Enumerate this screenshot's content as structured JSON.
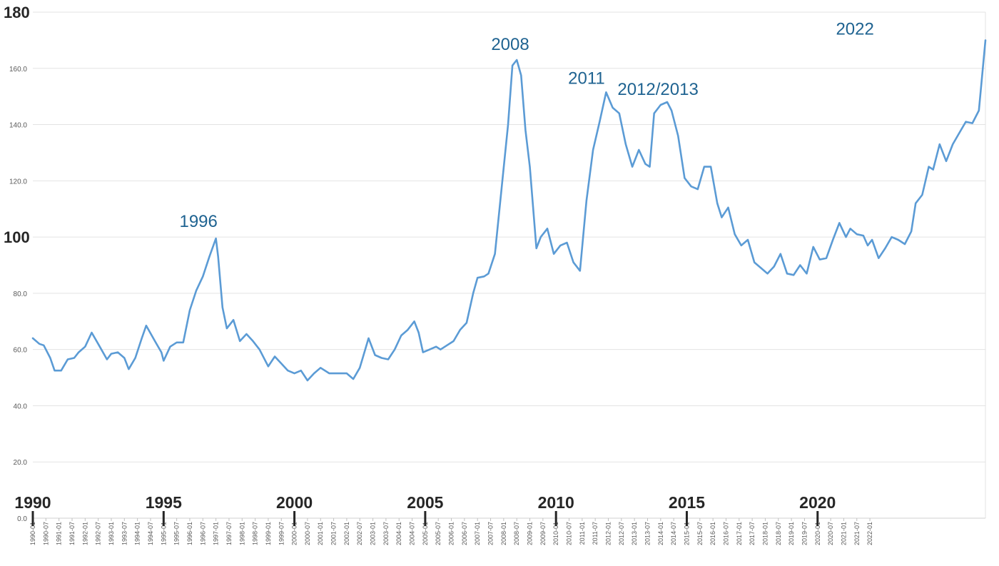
{
  "chart_data": {
    "type": "line",
    "title": "",
    "xlabel": "",
    "ylabel": "",
    "ylim": [
      0,
      180
    ],
    "grid": "horizontal",
    "legend": "none",
    "colors": {
      "series": "#5b9bd5",
      "annotation": "#1f6391",
      "grid": "#e3e3e3"
    },
    "yticks": [
      {
        "v": 0,
        "label": "0.0",
        "emph": false
      },
      {
        "v": 20,
        "label": "20.0",
        "emph": false
      },
      {
        "v": 40,
        "label": "40.0",
        "emph": false
      },
      {
        "v": 60,
        "label": "60.0",
        "emph": false
      },
      {
        "v": 80,
        "label": "80.0",
        "emph": false
      },
      {
        "v": 100,
        "label": "100",
        "emph": true
      },
      {
        "v": 120,
        "label": "120.0",
        "emph": false
      },
      {
        "v": 140,
        "label": "140.0",
        "emph": false
      },
      {
        "v": 160,
        "label": "160.0",
        "emph": false
      },
      {
        "v": 180,
        "label": "180",
        "emph": true
      }
    ],
    "x_tick_labels": [
      "1990-01",
      "1990-07",
      "1991-01",
      "1991-07",
      "1992-01",
      "1992-07",
      "1993-01",
      "1993-07",
      "1994-01",
      "1994-07",
      "1995-01",
      "1995-07",
      "1996-01",
      "1996-07",
      "1997-01",
      "1997-07",
      "1998-01",
      "1998-07",
      "1999-01",
      "1999-07",
      "2000-01",
      "2000-07",
      "2001-01",
      "2001-07",
      "2002-01",
      "2002-07",
      "2003-01",
      "2003-07",
      "2004-01",
      "2004-07",
      "2005-01",
      "2005-07",
      "2006-01",
      "2006-07",
      "2007-01",
      "2007-07",
      "2008-01",
      "2008-07",
      "2009-01",
      "2009-07",
      "2010-01",
      "2010-07",
      "2011-01",
      "2011-07",
      "2012-01",
      "2012-07",
      "2013-01",
      "2013-07",
      "2014-01",
      "2014-07",
      "2015-01",
      "2015-07",
      "2016-01",
      "2016-07",
      "2017-01",
      "2017-07",
      "2018-01",
      "2018-07",
      "2019-01",
      "2019-07",
      "2020-01",
      "2020-07",
      "2021-01",
      "2021-07",
      "2022-01"
    ],
    "x_year_labels": [
      {
        "x": "1990-01",
        "label": "1990"
      },
      {
        "x": "1995-01",
        "label": "1995"
      },
      {
        "x": "2000-01",
        "label": "2000"
      },
      {
        "x": "2005-01",
        "label": "2005"
      },
      {
        "x": "2010-01",
        "label": "2010"
      },
      {
        "x": "2015-01",
        "label": "2015"
      },
      {
        "x": "2020-01",
        "label": "2020"
      }
    ],
    "annotations": [
      {
        "x": "1996-05",
        "y": 100,
        "label": "1996"
      },
      {
        "x": "2008-04",
        "y": 163,
        "label": "2008"
      },
      {
        "x": "2011-03",
        "y": 151.5,
        "label": "2011"
      },
      {
        "x": "2012-12",
        "y": 148,
        "label": "2012/2013"
      },
      {
        "x": "2022-02",
        "y": 170,
        "label": "2022"
      }
    ],
    "series": [
      {
        "points": [
          [
            "1990-01",
            64
          ],
          [
            "1990-04",
            62
          ],
          [
            "1990-06",
            61.5
          ],
          [
            "1990-09",
            57
          ],
          [
            "1990-11",
            52.5
          ],
          [
            "1991-02",
            52.5
          ],
          [
            "1991-05",
            56.5
          ],
          [
            "1991-08",
            57
          ],
          [
            "1991-10",
            59
          ],
          [
            "1992-01",
            61
          ],
          [
            "1992-04",
            66
          ],
          [
            "1992-07",
            62
          ],
          [
            "1992-11",
            56.5
          ],
          [
            "1993-01",
            58.5
          ],
          [
            "1993-04",
            59
          ],
          [
            "1993-07",
            57
          ],
          [
            "1993-09",
            53
          ],
          [
            "1993-12",
            57
          ],
          [
            "1994-03",
            64
          ],
          [
            "1994-05",
            68.5
          ],
          [
            "1994-09",
            63
          ],
          [
            "1994-12",
            59
          ],
          [
            "1995-01",
            56
          ],
          [
            "1995-04",
            61
          ],
          [
            "1995-07",
            62.5
          ],
          [
            "1995-10",
            62.5
          ],
          [
            "1996-01",
            74
          ],
          [
            "1996-04",
            81
          ],
          [
            "1996-07",
            86
          ],
          [
            "1996-10",
            93
          ],
          [
            "1997-01",
            99.5
          ],
          [
            "1997-02",
            93
          ],
          [
            "1997-04",
            75
          ],
          [
            "1997-06",
            67.5
          ],
          [
            "1997-09",
            70.5
          ],
          [
            "1997-12",
            63
          ],
          [
            "1998-03",
            65.5
          ],
          [
            "1998-06",
            63
          ],
          [
            "1998-09",
            60
          ],
          [
            "1999-01",
            54
          ],
          [
            "1999-04",
            57.5
          ],
          [
            "1999-07",
            55
          ],
          [
            "1999-10",
            52.5
          ],
          [
            "2000-01",
            51.5
          ],
          [
            "2000-04",
            52.5
          ],
          [
            "2000-07",
            49
          ],
          [
            "2000-10",
            51.5
          ],
          [
            "2001-01",
            53.5
          ],
          [
            "2001-05",
            51.5
          ],
          [
            "2001-09",
            51.5
          ],
          [
            "2002-01",
            51.5
          ],
          [
            "2002-04",
            49.5
          ],
          [
            "2002-07",
            53.5
          ],
          [
            "2002-11",
            64
          ],
          [
            "2003-02",
            58
          ],
          [
            "2003-05",
            57
          ],
          [
            "2003-08",
            56.5
          ],
          [
            "2003-11",
            60
          ],
          [
            "2004-02",
            65
          ],
          [
            "2004-05",
            67
          ],
          [
            "2004-08",
            70
          ],
          [
            "2004-10",
            66
          ],
          [
            "2004-12",
            59
          ],
          [
            "2005-03",
            60
          ],
          [
            "2005-06",
            61
          ],
          [
            "2005-08",
            60
          ],
          [
            "2005-11",
            61.5
          ],
          [
            "2006-02",
            63
          ],
          [
            "2006-05",
            67
          ],
          [
            "2006-08",
            69.5
          ],
          [
            "2006-11",
            80
          ],
          [
            "2007-01",
            85.5
          ],
          [
            "2007-04",
            86
          ],
          [
            "2007-06",
            87
          ],
          [
            "2007-09",
            94
          ],
          [
            "2007-12",
            117
          ],
          [
            "2008-03",
            140
          ],
          [
            "2008-05",
            161
          ],
          [
            "2008-07",
            163
          ],
          [
            "2008-09",
            157.5
          ],
          [
            "2008-11",
            138
          ],
          [
            "2009-01",
            125
          ],
          [
            "2009-04",
            96
          ],
          [
            "2009-06",
            100
          ],
          [
            "2009-09",
            103
          ],
          [
            "2009-12",
            94
          ],
          [
            "2010-03",
            97
          ],
          [
            "2010-06",
            98
          ],
          [
            "2010-09",
            91
          ],
          [
            "2010-12",
            88
          ],
          [
            "2011-03",
            113
          ],
          [
            "2011-06",
            131
          ],
          [
            "2011-09",
            141
          ],
          [
            "2011-12",
            151.5
          ],
          [
            "2012-03",
            146
          ],
          [
            "2012-06",
            144
          ],
          [
            "2012-09",
            133
          ],
          [
            "2012-12",
            125
          ],
          [
            "2013-03",
            131
          ],
          [
            "2013-06",
            126
          ],
          [
            "2013-08",
            125
          ],
          [
            "2013-10",
            144
          ],
          [
            "2014-01",
            147
          ],
          [
            "2014-04",
            148
          ],
          [
            "2014-06",
            145
          ],
          [
            "2014-09",
            136
          ],
          [
            "2014-12",
            121
          ],
          [
            "2015-03",
            118
          ],
          [
            "2015-06",
            117
          ],
          [
            "2015-09",
            125
          ],
          [
            "2015-12",
            125
          ],
          [
            "2016-03",
            112
          ],
          [
            "2016-05",
            107
          ],
          [
            "2016-08",
            110.5
          ],
          [
            "2016-11",
            101
          ],
          [
            "2017-02",
            97
          ],
          [
            "2017-05",
            99
          ],
          [
            "2017-08",
            91
          ],
          [
            "2017-11",
            89
          ],
          [
            "2018-02",
            87
          ],
          [
            "2018-05",
            89.5
          ],
          [
            "2018-08",
            94
          ],
          [
            "2018-11",
            87
          ],
          [
            "2019-02",
            86.5
          ],
          [
            "2019-05",
            90
          ],
          [
            "2019-08",
            87
          ],
          [
            "2019-11",
            96.5
          ],
          [
            "2020-02",
            92
          ],
          [
            "2020-05",
            92.5
          ],
          [
            "2020-08",
            99
          ],
          [
            "2020-11",
            105
          ],
          [
            "2021-02",
            100
          ],
          [
            "2021-04",
            103
          ],
          [
            "2021-07",
            101
          ],
          [
            "2021-10",
            100.5
          ],
          [
            "2021-12",
            97
          ],
          [
            "2022-02",
            99
          ],
          [
            "2022-05",
            92.5
          ],
          [
            "2022-08",
            96
          ],
          [
            "2022-11",
            100
          ],
          [
            "2023-02",
            99
          ],
          [
            "2023-05",
            97.5
          ],
          [
            "2023-08",
            102
          ],
          [
            "2023-10",
            112
          ],
          [
            "2024-01",
            115
          ],
          [
            "2024-04",
            125
          ],
          [
            "2024-06",
            124
          ],
          [
            "2024-09",
            133
          ],
          [
            "2024-12",
            127
          ],
          [
            "2025-03",
            133
          ],
          [
            "2025-06",
            137
          ],
          [
            "2025-09",
            141
          ],
          [
            "2025-12",
            140.5
          ],
          [
            "2026-03",
            145
          ],
          [
            "2026-06",
            170
          ]
        ]
      }
    ]
  }
}
